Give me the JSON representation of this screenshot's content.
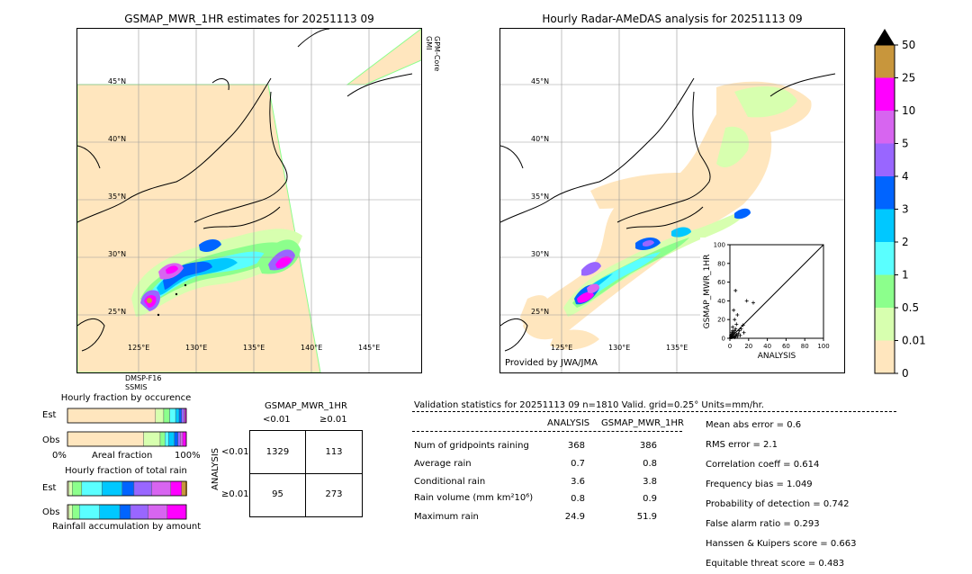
{
  "left_map": {
    "title": "GSMAP_MWR_1HR estimates for 20251113 09",
    "sensor_top": "GPM-Core\nGMI",
    "sensor_top_lines": [
      "GPM-Core",
      "GMI"
    ],
    "sensor_bottom_lines": [
      "DMSP-F16",
      "SSMIS"
    ],
    "lat_labels": [
      "45°N",
      "40°N",
      "35°N",
      "30°N",
      "25°N"
    ],
    "lon_labels": [
      "125°E",
      "130°E",
      "135°E",
      "140°E",
      "145°E"
    ]
  },
  "right_map": {
    "title": "Hourly Radar-AMeDAS analysis for 20251113 09",
    "credit": "Provided by JWA/JMA",
    "lat_labels": [
      "45°N",
      "40°N",
      "35°N",
      "30°N",
      "25°N"
    ],
    "lon_labels": [
      "125°E",
      "130°E",
      "135°E"
    ]
  },
  "colorbar": {
    "labels": [
      "50",
      "25",
      "10",
      "5",
      "4",
      "3",
      "2",
      "1",
      "0.5",
      "0.01",
      "0"
    ],
    "colors": [
      "#000000",
      "#c8963c",
      "#ff00ff",
      "#d765f0",
      "#9966ff",
      "#0064ff",
      "#00c8ff",
      "#5affff",
      "#8cff8c",
      "#d7ffaf",
      "#ffe6be"
    ]
  },
  "chart_data": [
    {
      "type": "scatter",
      "xlabel": "ANALYSIS",
      "ylabel": "GSMAP_MWR_1HR",
      "xlim": [
        0,
        100
      ],
      "ylim": [
        0,
        100
      ],
      "xticks": [
        "0",
        "20",
        "40",
        "60",
        "80",
        "100"
      ],
      "yticks": [
        "0",
        "20",
        "40",
        "60",
        "80",
        "100"
      ],
      "points": [
        [
          1,
          1
        ],
        [
          2,
          1
        ],
        [
          3,
          2
        ],
        [
          1,
          3
        ],
        [
          4,
          2
        ],
        [
          5,
          1
        ],
        [
          2,
          4
        ],
        [
          3,
          5
        ],
        [
          6,
          3
        ],
        [
          4,
          6
        ],
        [
          7,
          4
        ],
        [
          5,
          8
        ],
        [
          8,
          2
        ],
        [
          6,
          10
        ],
        [
          9,
          5
        ],
        [
          3,
          12
        ],
        [
          10,
          8
        ],
        [
          7,
          15
        ],
        [
          5,
          20
        ],
        [
          8,
          25
        ],
        [
          4,
          30
        ],
        [
          6,
          51
        ],
        [
          12,
          10
        ],
        [
          15,
          6
        ],
        [
          18,
          40
        ],
        [
          25,
          38
        ],
        [
          3,
          8
        ],
        [
          2,
          6
        ],
        [
          11,
          3
        ],
        [
          14,
          14
        ]
      ]
    },
    {
      "type": "bar",
      "title": "Hourly fraction by occurence",
      "categories": [
        "Est",
        "Obs"
      ],
      "xlabel": "Areal fraction",
      "xtick_left": "0%",
      "xtick_right": "100%",
      "series": [
        {
          "color": "#ffe6be",
          "values": [
            0.74,
            0.64
          ]
        },
        {
          "color": "#d7ffaf",
          "values": [
            0.07,
            0.14
          ]
        },
        {
          "color": "#8cff8c",
          "values": [
            0.05,
            0.04
          ]
        },
        {
          "color": "#5affff",
          "values": [
            0.05,
            0.03
          ]
        },
        {
          "color": "#00c8ff",
          "values": [
            0.03,
            0.05
          ]
        },
        {
          "color": "#0064ff",
          "values": [
            0.02,
            0.03
          ]
        },
        {
          "color": "#9966ff",
          "values": [
            0.02,
            0.02
          ]
        },
        {
          "color": "#d765f0",
          "values": [
            0.01,
            0.02
          ]
        },
        {
          "color": "#ff00ff",
          "values": [
            0.01,
            0.03
          ]
        }
      ]
    },
    {
      "type": "bar",
      "title": "Hourly fraction of total rain",
      "categories": [
        "Est",
        "Obs"
      ],
      "xlabel": "Rainfall accumulation by amount",
      "series": [
        {
          "color": "#ffe6be",
          "values": [
            0.01,
            0.01
          ]
        },
        {
          "color": "#d7ffaf",
          "values": [
            0.03,
            0.03
          ]
        },
        {
          "color": "#8cff8c",
          "values": [
            0.08,
            0.06
          ]
        },
        {
          "color": "#5affff",
          "values": [
            0.17,
            0.17
          ]
        },
        {
          "color": "#00c8ff",
          "values": [
            0.17,
            0.17
          ]
        },
        {
          "color": "#0064ff",
          "values": [
            0.1,
            0.09
          ]
        },
        {
          "color": "#9966ff",
          "values": [
            0.15,
            0.15
          ]
        },
        {
          "color": "#d765f0",
          "values": [
            0.16,
            0.16
          ]
        },
        {
          "color": "#ff00ff",
          "values": [
            0.09,
            0.16
          ]
        },
        {
          "color": "#c8963c",
          "values": [
            0.07,
            0.0
          ]
        },
        {
          "color": "#000000",
          "values": [
            0.02,
            0.0
          ]
        }
      ]
    }
  ],
  "contingency": {
    "title": "GSMAP_MWR_1HR",
    "col_lt": "<0.01",
    "col_ge": "≥0.01",
    "row_axis": "ANALYSIS",
    "row_lt": "<0.01",
    "row_ge": "≥0.01",
    "cells": [
      "1329",
      "113",
      "95",
      "273"
    ]
  },
  "validation": {
    "header": "Validation statistics for 20251113 09  n=1810 Valid. grid=0.25° Units=mm/hr.",
    "col1": "ANALYSIS",
    "col2": "GSMAP_MWR_1HR",
    "rows": [
      {
        "label": "Num of gridpoints raining",
        "a": "368",
        "b": "386"
      },
      {
        "label": "Average rain",
        "a": "0.7",
        "b": "0.8"
      },
      {
        "label": "Conditional rain",
        "a": "3.6",
        "b": "3.8"
      },
      {
        "label": "Rain volume (mm km²10⁶)",
        "a": "0.8",
        "b": "0.9"
      },
      {
        "label": "Maximum rain",
        "a": "24.9",
        "b": "51.9"
      }
    ],
    "scores": [
      "Mean abs error =    0.6",
      "RMS error =    2.1",
      "Correlation coeff =  0.614",
      "Frequency bias =  1.049",
      "Probability of detection =  0.742",
      "False alarm ratio =  0.293",
      "Hanssen & Kuipers score =  0.663",
      "Equitable threat score =  0.483"
    ]
  }
}
